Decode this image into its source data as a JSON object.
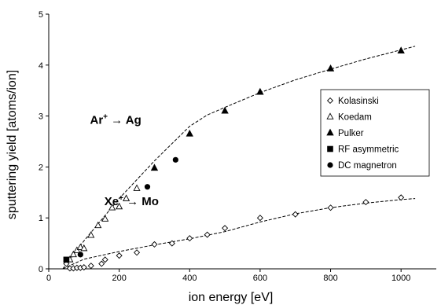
{
  "chart_data": {
    "type": "scatter",
    "xlabel": "ion energy [eV]",
    "ylabel": "sputtering yield [atoms/ion]",
    "xlim": [
      0,
      1100
    ],
    "ylim": [
      0,
      5
    ],
    "x_ticks": [
      "0",
      "200",
      "400",
      "600",
      "800",
      "1000"
    ],
    "y_ticks": [
      "0",
      "1",
      "2",
      "3",
      "4",
      "5"
    ],
    "legend_position": "right",
    "annotations": [
      {
        "text": "Ar⁺ → Ag",
        "x": 190,
        "y": 2.85
      },
      {
        "text": "Xe⁺ → Mo",
        "x": 235,
        "y": 1.25
      }
    ],
    "series": [
      {
        "name": "Kolasinski",
        "marker": "diamond-open",
        "x": [
          50,
          60,
          70,
          80,
          90,
          100,
          120,
          150,
          160,
          200,
          250,
          300,
          350,
          400,
          450,
          500,
          600,
          700,
          800,
          900,
          1000
        ],
        "y": [
          0.1,
          0.01,
          0.01,
          0.02,
          0.02,
          0.03,
          0.06,
          0.1,
          0.18,
          0.26,
          0.32,
          0.48,
          0.5,
          0.6,
          0.67,
          0.8,
          1.0,
          1.07,
          1.2,
          1.31,
          1.4
        ]
      },
      {
        "name": "Koedam",
        "marker": "triangle-open",
        "x": [
          60,
          70,
          80,
          90,
          100,
          120,
          140,
          160,
          180,
          200,
          220,
          250
        ],
        "y": [
          0.18,
          0.28,
          0.36,
          0.42,
          0.4,
          0.66,
          0.85,
          0.98,
          1.2,
          1.22,
          1.38,
          1.58
        ]
      },
      {
        "name": "Pulker",
        "marker": "triangle-filled",
        "x": [
          300,
          400,
          500,
          600,
          800,
          1000
        ],
        "y": [
          1.98,
          2.65,
          3.1,
          3.47,
          3.93,
          4.28
        ]
      },
      {
        "name": "RF asymmetric",
        "marker": "square-filled",
        "x": [
          50
        ],
        "y": [
          0.18
        ]
      },
      {
        "name": "DC magnetron",
        "marker": "circle-filled",
        "x": [
          90,
          280,
          360
        ],
        "y": [
          0.28,
          1.61,
          2.14
        ]
      }
    ],
    "fit_curves": [
      {
        "x": [
          40,
          100,
          200,
          300,
          400,
          450,
          500,
          600,
          700,
          800,
          900,
          1000,
          1040
        ],
        "y": [
          0.0,
          0.55,
          1.38,
          2.12,
          2.8,
          3.02,
          3.17,
          3.46,
          3.71,
          3.92,
          4.12,
          4.3,
          4.37
        ]
      },
      {
        "x": [
          40,
          100,
          200,
          300,
          400,
          500,
          600,
          700,
          800,
          900,
          1000,
          1040
        ],
        "y": [
          0.0,
          0.19,
          0.34,
          0.47,
          0.59,
          0.73,
          0.92,
          1.08,
          1.2,
          1.29,
          1.36,
          1.38
        ]
      }
    ]
  }
}
